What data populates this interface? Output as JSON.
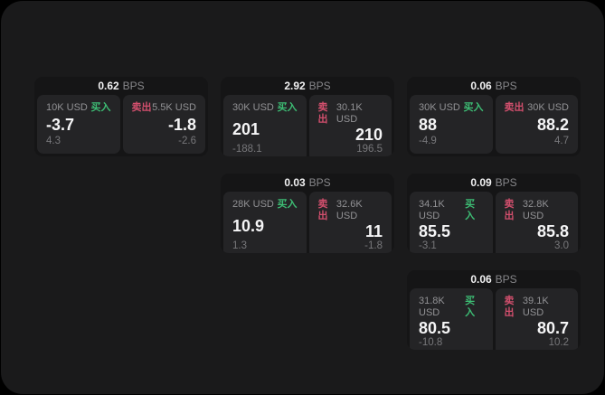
{
  "colors": {
    "background": "#000000",
    "panel": "#1a1a1b",
    "card": "#151516",
    "subcard": "#242426",
    "text_primary": "#f2f2f3",
    "text_muted": "#8b8b8e",
    "buy_green": "#3dbd74",
    "sell_red": "#d24f6d"
  },
  "cards": [
    {
      "bps_value": "0.62",
      "bps_unit": "BPS",
      "buy": {
        "notional": "10K USD",
        "side_label": "买入",
        "price": "-3.7",
        "delta": "4.3"
      },
      "sell": {
        "side_label": "卖出",
        "notional": "5.5K USD",
        "price": "-1.8",
        "delta": "-2.6"
      }
    },
    {
      "bps_value": "2.92",
      "bps_unit": "BPS",
      "buy": {
        "notional": "30K USD",
        "side_label": "买入",
        "price": "201",
        "delta": "-188.1"
      },
      "sell": {
        "side_label": "卖出",
        "notional": "30.1K USD",
        "price": "210",
        "delta": "196.5"
      }
    },
    {
      "bps_value": "0.06",
      "bps_unit": "BPS",
      "buy": {
        "notional": "30K USD",
        "side_label": "买入",
        "price": "88",
        "delta": "-4.9"
      },
      "sell": {
        "side_label": "卖出",
        "notional": "30K USD",
        "price": "88.2",
        "delta": "4.7"
      }
    },
    {
      "bps_value": "0.03",
      "bps_unit": "BPS",
      "buy": {
        "notional": "28K USD",
        "side_label": "买入",
        "price": "10.9",
        "delta": "1.3"
      },
      "sell": {
        "side_label": "卖出",
        "notional": "32.6K USD",
        "price": "11",
        "delta": "-1.8"
      }
    },
    {
      "bps_value": "0.09",
      "bps_unit": "BPS",
      "buy": {
        "notional": "34.1K USD",
        "side_label": "买入",
        "price": "85.5",
        "delta": "-3.1"
      },
      "sell": {
        "side_label": "卖出",
        "notional": "32.8K USD",
        "price": "85.8",
        "delta": "3.0"
      }
    },
    {
      "bps_value": "0.06",
      "bps_unit": "BPS",
      "buy": {
        "notional": "31.8K USD",
        "side_label": "买入",
        "price": "80.5",
        "delta": "-10.8"
      },
      "sell": {
        "side_label": "卖出",
        "notional": "39.1K USD",
        "price": "80.7",
        "delta": "10.2"
      }
    }
  ]
}
